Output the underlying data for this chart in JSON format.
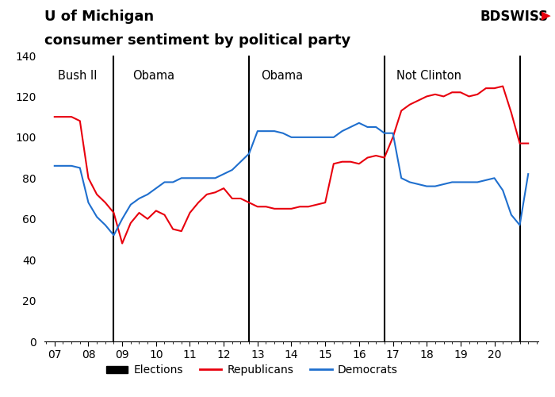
{
  "title_line1": "U of Michigan",
  "title_line2": "consumer sentiment by political party",
  "election_lines": [
    8.75,
    12.75,
    16.75,
    20.75
  ],
  "era_labels": [
    {
      "text": "Bush II",
      "x": 7.1
    },
    {
      "text": "Obama",
      "x": 9.3
    },
    {
      "text": "Obama",
      "x": 13.1
    },
    {
      "text": "Not Clinton",
      "x": 17.1
    }
  ],
  "ylim": [
    0,
    140
  ],
  "yticks": [
    0,
    20,
    40,
    60,
    80,
    100,
    120,
    140
  ],
  "xticks": [
    7,
    8,
    9,
    10,
    11,
    12,
    13,
    14,
    15,
    16,
    17,
    18,
    19,
    20
  ],
  "xticklabels": [
    "07",
    "08",
    "09",
    "10",
    "11",
    "12",
    "13",
    "14",
    "15",
    "16",
    "17",
    "18",
    "19",
    "20"
  ],
  "xlim": [
    6.7,
    21.3
  ],
  "rep_color": "#e8000d",
  "dem_color": "#1f6fce",
  "election_color": "#000000",
  "background_color": "#ffffff",
  "republicans": {
    "x": [
      7.0,
      7.25,
      7.5,
      7.75,
      8.0,
      8.25,
      8.5,
      8.75,
      9.0,
      9.25,
      9.5,
      9.75,
      10.0,
      10.25,
      10.5,
      10.75,
      11.0,
      11.25,
      11.5,
      11.75,
      12.0,
      12.25,
      12.5,
      12.75,
      13.0,
      13.25,
      13.5,
      13.75,
      14.0,
      14.25,
      14.5,
      14.75,
      15.0,
      15.25,
      15.5,
      15.75,
      16.0,
      16.25,
      16.5,
      16.75,
      17.0,
      17.25,
      17.5,
      17.75,
      18.0,
      18.25,
      18.5,
      18.75,
      19.0,
      19.25,
      19.5,
      19.75,
      20.0,
      20.25,
      20.5,
      20.75,
      21.0
    ],
    "y": [
      110,
      110,
      110,
      108,
      80,
      72,
      68,
      63,
      48,
      58,
      63,
      60,
      64,
      62,
      55,
      54,
      63,
      68,
      72,
      73,
      75,
      70,
      70,
      68,
      66,
      66,
      65,
      65,
      65,
      66,
      66,
      67,
      68,
      87,
      88,
      88,
      87,
      90,
      91,
      90,
      100,
      113,
      116,
      118,
      120,
      121,
      120,
      122,
      122,
      120,
      121,
      124,
      124,
      125,
      112,
      97,
      97
    ]
  },
  "democrats": {
    "x": [
      7.0,
      7.25,
      7.5,
      7.75,
      8.0,
      8.25,
      8.5,
      8.75,
      9.0,
      9.25,
      9.5,
      9.75,
      10.0,
      10.25,
      10.5,
      10.75,
      11.0,
      11.25,
      11.5,
      11.75,
      12.0,
      12.25,
      12.5,
      12.75,
      13.0,
      13.25,
      13.5,
      13.75,
      14.0,
      14.25,
      14.5,
      14.75,
      15.0,
      15.25,
      15.5,
      15.75,
      16.0,
      16.25,
      16.5,
      16.75,
      17.0,
      17.25,
      17.5,
      17.75,
      18.0,
      18.25,
      18.5,
      18.75,
      19.0,
      19.25,
      19.5,
      19.75,
      20.0,
      20.25,
      20.5,
      20.75,
      21.0
    ],
    "y": [
      86,
      86,
      86,
      85,
      68,
      61,
      57,
      52,
      60,
      67,
      70,
      72,
      75,
      78,
      78,
      80,
      80,
      80,
      80,
      80,
      82,
      84,
      88,
      92,
      103,
      103,
      103,
      102,
      100,
      100,
      100,
      100,
      100,
      100,
      103,
      105,
      107,
      105,
      105,
      102,
      102,
      80,
      78,
      77,
      76,
      76,
      77,
      78,
      78,
      78,
      78,
      79,
      80,
      74,
      62,
      57,
      82
    ]
  }
}
